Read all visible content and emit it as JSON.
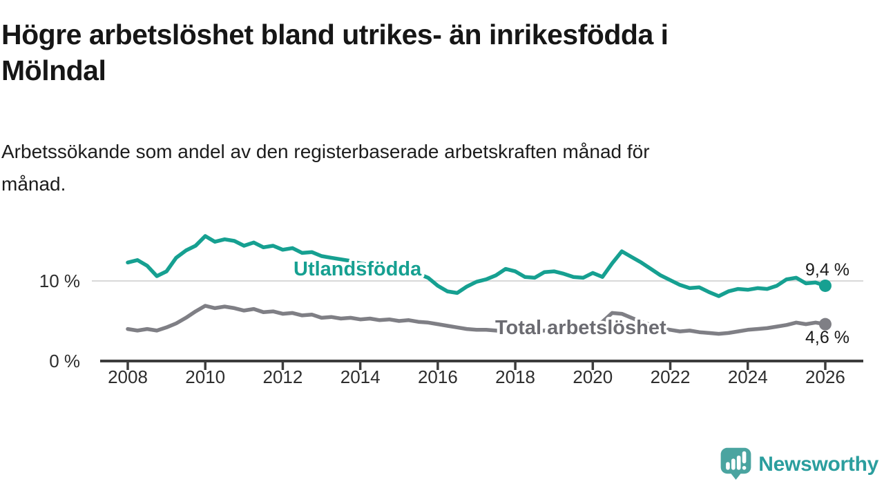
{
  "header": {
    "title_line1": "Högre arbetslöshet bland utrikes- än inrikesfödda i",
    "title_line2": "Mölndal",
    "subtitle_line1": "Arbetssökande som andel av den registerbaserade arbetskraften månad för",
    "subtitle_line2": "månad."
  },
  "chart_data": {
    "type": "line",
    "title": "Högre arbetslöshet bland utrikes- än inrikesfödda i Mölndal",
    "subtitle": "Arbetssökande som andel av den registerbaserade arbetskraften månad för månad.",
    "xlabel": "",
    "ylabel": "",
    "xlim": [
      2007.3,
      2027.0
    ],
    "ylim": [
      0,
      16.5
    ],
    "grid": "single horizontal gridline at 10 %",
    "legend": "inline labels on lines",
    "x": [
      2008,
      2008.25,
      2008.5,
      2008.75,
      2009,
      2009.25,
      2009.5,
      2009.75,
      2010,
      2010.25,
      2010.5,
      2010.75,
      2011,
      2011.25,
      2011.5,
      2011.75,
      2012,
      2012.25,
      2012.5,
      2012.75,
      2013,
      2013.25,
      2013.5,
      2013.75,
      2014,
      2014.25,
      2014.5,
      2014.75,
      2015,
      2015.25,
      2015.5,
      2015.75,
      2016,
      2016.25,
      2016.5,
      2016.75,
      2017,
      2017.25,
      2017.5,
      2017.75,
      2018,
      2018.25,
      2018.5,
      2018.75,
      2019,
      2019.25,
      2019.5,
      2019.75,
      2020,
      2020.25,
      2020.5,
      2020.75,
      2021,
      2021.25,
      2021.5,
      2021.75,
      2022,
      2022.25,
      2022.5,
      2022.75,
      2023,
      2023.25,
      2023.5,
      2023.75,
      2024,
      2024.25,
      2024.5,
      2024.75,
      2025,
      2025.25,
      2025.5,
      2025.75,
      2026
    ],
    "series": [
      {
        "name": "Utlandsfödda",
        "color": "#16a091",
        "label_color": "#16a091",
        "end_label": "9,4 %",
        "values": [
          12.3,
          12.6,
          11.9,
          10.6,
          11.2,
          12.9,
          13.8,
          14.4,
          15.6,
          14.9,
          15.2,
          15.0,
          14.4,
          14.8,
          14.2,
          14.4,
          13.9,
          14.1,
          13.5,
          13.6,
          13.1,
          12.9,
          12.7,
          12.5,
          12.2,
          12.0,
          11.8,
          11.5,
          11.3,
          11.1,
          10.9,
          10.4,
          9.4,
          8.7,
          8.5,
          9.3,
          9.9,
          10.2,
          10.7,
          11.5,
          11.2,
          10.5,
          10.4,
          11.1,
          11.2,
          10.9,
          10.5,
          10.4,
          11.0,
          10.5,
          12.2,
          13.7,
          13.0,
          12.3,
          11.5,
          10.7,
          10.1,
          9.5,
          9.1,
          9.2,
          8.6,
          8.1,
          8.7,
          9.0,
          8.9,
          9.1,
          9.0,
          9.4,
          10.2,
          10.4,
          9.7,
          9.8,
          9.4
        ]
      },
      {
        "name": "Total arbetslöshet",
        "color": "#7f7f85",
        "label_color": "#6c6c72",
        "end_label": "4,6 %",
        "values": [
          4.0,
          3.8,
          4.0,
          3.8,
          4.2,
          4.7,
          5.4,
          6.2,
          6.9,
          6.6,
          6.8,
          6.6,
          6.3,
          6.5,
          6.1,
          6.2,
          5.9,
          6.0,
          5.7,
          5.8,
          5.4,
          5.5,
          5.3,
          5.4,
          5.2,
          5.3,
          5.1,
          5.2,
          5.0,
          5.1,
          4.9,
          4.8,
          4.6,
          4.4,
          4.2,
          4.0,
          3.9,
          3.9,
          3.8,
          3.7,
          3.8,
          3.6,
          3.7,
          3.8,
          3.9,
          3.8,
          3.9,
          3.8,
          4.0,
          4.9,
          6.0,
          5.9,
          5.4,
          4.9,
          4.5,
          4.1,
          3.9,
          3.7,
          3.8,
          3.6,
          3.5,
          3.4,
          3.5,
          3.7,
          3.9,
          4.0,
          4.1,
          4.3,
          4.5,
          4.8,
          4.6,
          4.8,
          4.6
        ]
      }
    ],
    "xticks": [
      {
        "year": 2008,
        "label": "2008"
      },
      {
        "year": 2010,
        "label": "2010"
      },
      {
        "year": 2012,
        "label": "2012"
      },
      {
        "year": 2014,
        "label": "2014"
      },
      {
        "year": 2016,
        "label": "2016"
      },
      {
        "year": 2018,
        "label": "2018"
      },
      {
        "year": 2020,
        "label": "2020"
      },
      {
        "year": 2022,
        "label": "2022"
      },
      {
        "year": 2024,
        "label": "2024"
      },
      {
        "year": 2026,
        "label": "2026"
      }
    ],
    "yticks": [
      {
        "value": 0,
        "label": "0 %"
      },
      {
        "value": 10,
        "label": "10 %"
      }
    ]
  },
  "footer": {
    "brand": "Newsworthy",
    "brand_color": "#2b9e9e",
    "logo_bubble_color": "#4aa4a0"
  }
}
